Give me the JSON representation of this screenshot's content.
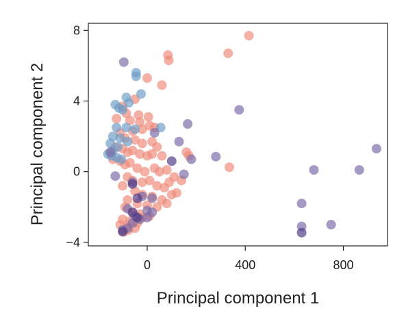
{
  "chart_data": {
    "type": "scatter",
    "xlabel": "Principal component 1",
    "ylabel": "Principal component 2",
    "xlim": [
      -240,
      980
    ],
    "ylim": [
      -4.2,
      8.4
    ],
    "xticks": [
      0,
      400,
      800
    ],
    "yticks": [
      -4,
      0,
      4,
      8
    ],
    "xtick_labels": [
      "0",
      "400",
      "800"
    ],
    "ytick_labels": [
      "−4",
      "0",
      "4",
      "8"
    ],
    "grid": false,
    "colors": {
      "salmon": "#ef8a7a",
      "steel_blue": "#6f9cc6",
      "purple": "#7a6aa6",
      "dark_purple": "#4e3a85"
    },
    "series": [
      {
        "color": "#ef8a7a",
        "points": [
          [
            415,
            7.7
          ],
          [
            330,
            6.7
          ],
          [
            85,
            6.6
          ],
          [
            88,
            6.3
          ],
          [
            0,
            5.3
          ],
          [
            60,
            4.9
          ],
          [
            -50,
            4.1
          ],
          [
            -100,
            3.7
          ],
          [
            -35,
            3.2
          ],
          [
            5,
            3.1
          ],
          [
            -125,
            3.0
          ],
          [
            -85,
            3.3
          ],
          [
            -70,
            2.9
          ],
          [
            -30,
            2.8
          ],
          [
            -20,
            2.4
          ],
          [
            10,
            2.6
          ],
          [
            30,
            2.5
          ],
          [
            -60,
            2.3
          ],
          [
            -110,
            2.2
          ],
          [
            -90,
            1.9
          ],
          [
            -50,
            1.8
          ],
          [
            -20,
            1.6
          ],
          [
            20,
            1.7
          ],
          [
            40,
            1.4
          ],
          [
            -130,
            1.4
          ],
          [
            -100,
            1.3
          ],
          [
            -80,
            1.1
          ],
          [
            -60,
            1.2
          ],
          [
            -30,
            1.0
          ],
          [
            0,
            0.9
          ],
          [
            20,
            1.0
          ],
          [
            60,
            0.9
          ],
          [
            160,
            1.1
          ],
          [
            170,
            0.9
          ],
          [
            335,
            0.25
          ],
          [
            -140,
            0.7
          ],
          [
            -110,
            0.6
          ],
          [
            -90,
            0.4
          ],
          [
            -70,
            0.5
          ],
          [
            -40,
            0.2
          ],
          [
            -10,
            0.0
          ],
          [
            30,
            0.2
          ],
          [
            50,
            0.0
          ],
          [
            80,
            0.1
          ],
          [
            110,
            -0.3
          ],
          [
            140,
            -0.5
          ],
          [
            -80,
            -0.3
          ],
          [
            -60,
            -0.5
          ],
          [
            -20,
            -0.6
          ],
          [
            10,
            -0.5
          ],
          [
            40,
            -0.8
          ],
          [
            70,
            -0.9
          ],
          [
            -100,
            -0.8
          ],
          [
            -50,
            -1.1
          ],
          [
            -20,
            -1.3
          ],
          [
            20,
            -1.4
          ],
          [
            60,
            -1.6
          ],
          [
            100,
            -1.3
          ],
          [
            120,
            -1.2
          ],
          [
            -80,
            -1.6
          ],
          [
            -40,
            -1.8
          ],
          [
            0,
            -1.9
          ],
          [
            40,
            -2.0
          ],
          [
            80,
            -1.8
          ],
          [
            -90,
            -2.0
          ],
          [
            -60,
            -2.3
          ],
          [
            -30,
            -2.4
          ],
          [
            10,
            -2.5
          ],
          [
            -100,
            -2.7
          ],
          [
            -70,
            -2.8
          ],
          [
            -40,
            -2.9
          ],
          [
            -110,
            -3.0
          ],
          [
            -80,
            -3.1
          ],
          [
            -50,
            -3.2
          ],
          [
            -95,
            -3.4
          ],
          [
            -75,
            -3.3
          ],
          [
            -20,
            -2.6
          ],
          [
            90,
            -0.6
          ]
        ]
      },
      {
        "color": "#6f9cc6",
        "points": [
          [
            -45,
            5.6
          ],
          [
            -45,
            5.4
          ],
          [
            -25,
            4.4
          ],
          [
            -85,
            4.2
          ],
          [
            -75,
            3.9
          ],
          [
            -130,
            3.8
          ],
          [
            -115,
            3.6
          ],
          [
            -100,
            3.5
          ],
          [
            -125,
            2.5
          ],
          [
            -85,
            2.5
          ],
          [
            -50,
            2.4
          ],
          [
            55,
            2.5
          ],
          [
            -140,
            2.0
          ],
          [
            -110,
            1.9
          ],
          [
            -80,
            1.7
          ],
          [
            -150,
            1.6
          ],
          [
            -120,
            1.4
          ],
          [
            -140,
            1.2
          ],
          [
            -160,
            1.0
          ],
          [
            -145,
            0.9
          ],
          [
            -125,
            0.8
          ],
          [
            -105,
            0.7
          ]
        ]
      },
      {
        "color": "#7a6aa6",
        "points": [
          [
            -95,
            6.2
          ],
          [
            375,
            3.5
          ],
          [
            165,
            2.7
          ],
          [
            30,
            2.2
          ],
          [
            130,
            1.7
          ],
          [
            935,
            1.3
          ],
          [
            -150,
            1.1
          ],
          [
            280,
            0.85
          ],
          [
            180,
            0.7
          ],
          [
            680,
            0.1
          ],
          [
            865,
            0.1
          ],
          [
            150,
            -0.15
          ],
          [
            -130,
            -0.25
          ],
          [
            -60,
            -0.6
          ],
          [
            630,
            -1.8
          ],
          [
            -20,
            -1.4
          ],
          [
            20,
            -1.5
          ],
          [
            -80,
            -2.1
          ],
          [
            0,
            -2.2
          ],
          [
            20,
            -2.3
          ],
          [
            -50,
            -2.5
          ],
          [
            -30,
            -2.7
          ],
          [
            0,
            -2.6
          ],
          [
            630,
            -3.1
          ],
          [
            750,
            -3.0
          ],
          [
            -60,
            -2.9
          ],
          [
            -100,
            -3.3
          ],
          [
            -80,
            -3.2
          ]
        ]
      },
      {
        "color": "#4e3a85",
        "points": [
          [
            100,
            0.6
          ],
          [
            -60,
            -0.7
          ],
          [
            -40,
            -1.5
          ],
          [
            -60,
            -2.3
          ],
          [
            -40,
            -2.6
          ],
          [
            -100,
            -3.4
          ],
          [
            630,
            -3.45
          ]
        ]
      }
    ]
  }
}
